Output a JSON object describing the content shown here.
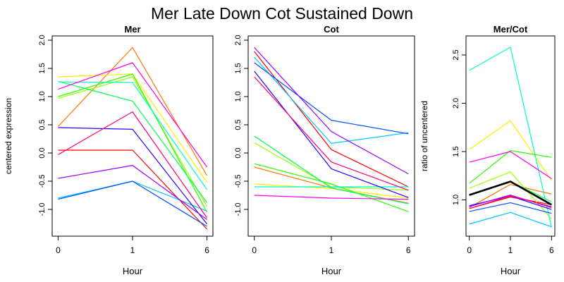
{
  "page_title": "Mer Late Down Cot Sustained Down",
  "chart_data": [
    {
      "type": "line",
      "id": "mer",
      "title": "Mer",
      "xlabel": "Hour",
      "ylabel": "centered expression",
      "x": [
        0,
        1,
        6
      ],
      "x_tick_labels": [
        "0",
        "1",
        "6"
      ],
      "y_ticks": [
        2.0,
        1.5,
        1.0,
        0.5,
        0.0,
        -0.5,
        -1.0
      ],
      "y_tick_labels": [
        "2.0",
        "1.5",
        "1.0",
        "0.5",
        "0.0",
        "-0.5",
        "-1.0"
      ],
      "ylim": [
        -1.475,
        2.075
      ],
      "grid": false,
      "legend": "none",
      "series": [
        {
          "name": "series-red",
          "color": "#FF0000",
          "values": [
            0.05,
            0.05,
            -1.35
          ]
        },
        {
          "name": "series-orange",
          "color": "#FF7600",
          "values": [
            0.47,
            1.87,
            -0.4
          ]
        },
        {
          "name": "series-yellow",
          "color": "#FFEC00",
          "values": [
            1.35,
            1.4,
            -0.52
          ]
        },
        {
          "name": "series-yellowgreen",
          "color": "#9DFF00",
          "values": [
            0.97,
            1.35,
            -0.95
          ]
        },
        {
          "name": "series-green",
          "color": "#27FF00",
          "values": [
            1.0,
            1.4,
            -1.05
          ]
        },
        {
          "name": "series-springgreen",
          "color": "#00FF4E",
          "values": [
            1.27,
            0.92,
            -0.88
          ]
        },
        {
          "name": "series-turquoise",
          "color": "#00FFC4",
          "values": [
            1.26,
            1.25,
            -0.65
          ]
        },
        {
          "name": "series-skyblue",
          "color": "#00C4FF",
          "values": [
            -0.8,
            -0.5,
            -1.03
          ]
        },
        {
          "name": "series-blue",
          "color": "#004EFF",
          "values": [
            -0.82,
            -0.5,
            -1.3
          ]
        },
        {
          "name": "series-navy",
          "color": "#2700FF",
          "values": [
            0.45,
            0.42,
            -1.26
          ]
        },
        {
          "name": "series-purple",
          "color": "#9D00FF",
          "values": [
            -0.45,
            -0.22,
            -1.18
          ]
        },
        {
          "name": "series-magenta",
          "color": "#FF00EB",
          "values": [
            1.13,
            1.6,
            -0.25
          ]
        },
        {
          "name": "series-deeppink",
          "color": "#FF0076",
          "values": [
            -0.03,
            0.73,
            -1.15
          ]
        }
      ]
    },
    {
      "type": "line",
      "id": "cot",
      "title": "Cot",
      "xlabel": "Hour",
      "ylabel": "",
      "x": [
        0,
        1,
        6
      ],
      "x_tick_labels": [
        "0",
        "1",
        "6"
      ],
      "y_ticks": [
        2.0,
        1.5,
        1.0,
        0.5,
        0.0,
        -0.5,
        -1.0
      ],
      "y_tick_labels": [
        "2.0",
        "1.5",
        "1.0",
        "0.5",
        "0.0",
        "-0.5",
        "-1.0"
      ],
      "ylim": [
        -1.475,
        2.075
      ],
      "grid": false,
      "legend": "none",
      "series": [
        {
          "name": "series-red",
          "color": "#FF0000",
          "values": [
            1.8,
            0.06,
            -0.6
          ]
        },
        {
          "name": "series-orange",
          "color": "#FF7600",
          "values": [
            -0.25,
            -0.62,
            -0.89
          ]
        },
        {
          "name": "series-yellow",
          "color": "#FFEC00",
          "values": [
            -0.55,
            -0.63,
            -0.8
          ]
        },
        {
          "name": "series-yellowgreen",
          "color": "#9DFF00",
          "values": [
            0.18,
            -0.6,
            -0.66
          ]
        },
        {
          "name": "series-green",
          "color": "#27FF00",
          "values": [
            -0.19,
            -0.55,
            -1.04
          ]
        },
        {
          "name": "series-springgreen",
          "color": "#00FF4E",
          "values": [
            0.3,
            -0.62,
            -0.9
          ]
        },
        {
          "name": "series-turquoise",
          "color": "#00FFC4",
          "values": [
            -0.6,
            -0.6,
            -0.6
          ]
        },
        {
          "name": "series-skyblue",
          "color": "#00C4FF",
          "values": [
            1.7,
            0.17,
            0.36
          ]
        },
        {
          "name": "series-blue",
          "color": "#004EFF",
          "values": [
            1.6,
            0.58,
            0.34
          ]
        },
        {
          "name": "series-navy",
          "color": "#2700FF",
          "values": [
            1.45,
            -0.28,
            -0.79
          ]
        },
        {
          "name": "series-purple",
          "color": "#9D00FF",
          "values": [
            1.87,
            0.38,
            -0.37
          ]
        },
        {
          "name": "series-magenta",
          "color": "#FF00EB",
          "values": [
            -0.75,
            -0.8,
            -0.82
          ]
        },
        {
          "name": "series-deeppink",
          "color": "#FF0076",
          "values": [
            1.35,
            -0.16,
            -0.66
          ]
        }
      ]
    },
    {
      "type": "line",
      "id": "mer-cot",
      "title": "Mer/Cot",
      "xlabel": "Hour",
      "ylabel": "ratio of uncentered",
      "x": [
        0,
        1,
        6
      ],
      "x_tick_labels": [
        "0",
        "1",
        "6"
      ],
      "y_ticks": [
        2.5,
        2.0,
        1.5,
        1.0
      ],
      "y_tick_labels": [
        "2.5",
        "2.0",
        "1.5",
        "1.0"
      ],
      "ylim": [
        0.624,
        2.697
      ],
      "grid": false,
      "legend": "none",
      "series": [
        {
          "name": "series-red",
          "color": "#FF0000",
          "values": [
            0.91,
            1.03,
            0.95
          ]
        },
        {
          "name": "series-orange",
          "color": "#FF7600",
          "values": [
            0.92,
            1.16,
            1.06
          ]
        },
        {
          "name": "series-yellow",
          "color": "#FFEC00",
          "values": [
            1.52,
            1.82,
            1.2
          ]
        },
        {
          "name": "series-yellowgreen",
          "color": "#9DFF00",
          "values": [
            1.12,
            1.29,
            0.8
          ]
        },
        {
          "name": "series-green",
          "color": "#27FF00",
          "values": [
            1.17,
            1.51,
            1.44
          ]
        },
        {
          "name": "series-springgreen",
          "color": "#00FF4E",
          "values": [
            1.05,
            1.19,
            0.98
          ]
        },
        {
          "name": "series-turquoise",
          "color": "#00FFC4",
          "values": [
            2.34,
            2.58,
            0.72
          ]
        },
        {
          "name": "series-skyblue",
          "color": "#00C4FF",
          "values": [
            0.75,
            0.87,
            0.72
          ]
        },
        {
          "name": "series-blue",
          "color": "#004EFF",
          "values": [
            0.88,
            0.97,
            0.86
          ]
        },
        {
          "name": "series-navy",
          "color": "#2700FF",
          "values": [
            0.94,
            1.04,
            0.9
          ]
        },
        {
          "name": "series-purple",
          "color": "#9D00FF",
          "values": [
            0.93,
            1.05,
            0.92
          ]
        },
        {
          "name": "series-magenta",
          "color": "#FF00EB",
          "values": [
            1.39,
            1.5,
            1.22
          ]
        },
        {
          "name": "series-deeppink",
          "color": "#FF0076",
          "values": [
            0.91,
            1.04,
            0.93
          ]
        },
        {
          "name": "series-mean",
          "color": "#000000",
          "width": 2.6,
          "values": [
            1.05,
            1.19,
            0.95
          ]
        }
      ]
    }
  ]
}
